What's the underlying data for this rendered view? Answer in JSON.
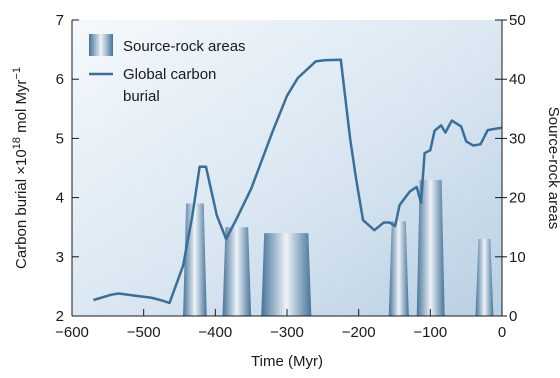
{
  "chart_data": {
    "type": "line",
    "x_axis": {
      "label": "Time (Myr)",
      "range": [
        -600,
        0
      ],
      "ticks": [
        -600,
        -500,
        -400,
        -300,
        -200,
        -100,
        0
      ],
      "tick_labels": [
        "−600",
        "−500",
        "−400",
        "−300",
        "−200",
        "−100",
        "0"
      ]
    },
    "y_left": {
      "label_main": "Carbon burial ×10",
      "label_sup": "18",
      "label_rest": " mol Myr",
      "label_sup2": "−1",
      "range": [
        2,
        7
      ],
      "ticks": [
        2,
        3,
        4,
        5,
        6,
        7
      ],
      "tick_labels": [
        "2",
        "3",
        "4",
        "5",
        "6",
        "7"
      ]
    },
    "y_right": {
      "label": "Source-rock areas",
      "range": [
        0,
        50
      ],
      "ticks": [
        0,
        10,
        20,
        30,
        40,
        50
      ],
      "tick_labels": [
        "0",
        "10",
        "20",
        "30",
        "40",
        "50"
      ]
    },
    "legend": {
      "position": "top-left",
      "items": [
        {
          "label": "Source-rock areas",
          "kind": "swatch"
        },
        {
          "label_line1": "Global carbon",
          "label_line2": "burial",
          "kind": "line"
        }
      ]
    },
    "series": [
      {
        "name": "Global carbon burial",
        "axis": "left",
        "color": "#3a6f99",
        "x": [
          -570,
          -545,
          -535,
          -510,
          -490,
          -480,
          -474,
          -464,
          -445,
          -432,
          -422,
          -413,
          -398,
          -385,
          -370,
          -350,
          -320,
          -300,
          -285,
          -260,
          -248,
          -225,
          -212,
          -204,
          -194,
          -178,
          -165,
          -157,
          -149,
          -143,
          -129,
          -119,
          -113,
          -108,
          -100,
          -94,
          -85,
          -79,
          -70,
          -57,
          -50,
          -40,
          -30,
          -20,
          -10,
          0
        ],
        "values": [
          2.27,
          2.36,
          2.38,
          2.34,
          2.31,
          2.28,
          2.26,
          2.22,
          2.85,
          3.7,
          4.52,
          4.52,
          3.7,
          3.3,
          3.65,
          4.15,
          5.12,
          5.72,
          6.02,
          6.3,
          6.32,
          6.33,
          5.0,
          4.35,
          3.62,
          3.45,
          3.58,
          3.58,
          3.52,
          3.87,
          4.1,
          4.18,
          3.91,
          4.75,
          4.8,
          5.13,
          5.22,
          5.1,
          5.3,
          5.2,
          4.95,
          4.88,
          4.9,
          5.14,
          5.16,
          5.18
        ]
      }
    ],
    "bars": {
      "name": "Source-rock areas",
      "axis": "right",
      "items": [
        {
          "x_start": -445,
          "x_end": -412,
          "value": 19
        },
        {
          "x_start": -390,
          "x_end": -350,
          "value": 15
        },
        {
          "x_start": -336,
          "x_end": -266,
          "value": 14
        },
        {
          "x_start": -158,
          "x_end": -130,
          "value": 16
        },
        {
          "x_start": -119,
          "x_end": -80,
          "value": 23
        },
        {
          "x_start": -37,
          "x_end": -12,
          "value": 13
        }
      ]
    },
    "colors": {
      "line": "#3a6f99",
      "bar_dark": "#46749a",
      "bar_light": "#eef3f8",
      "background_light": "#f5f9fc",
      "background_dark": "#b9cfe3",
      "axis": "#1a1a1a"
    },
    "grid": false
  }
}
